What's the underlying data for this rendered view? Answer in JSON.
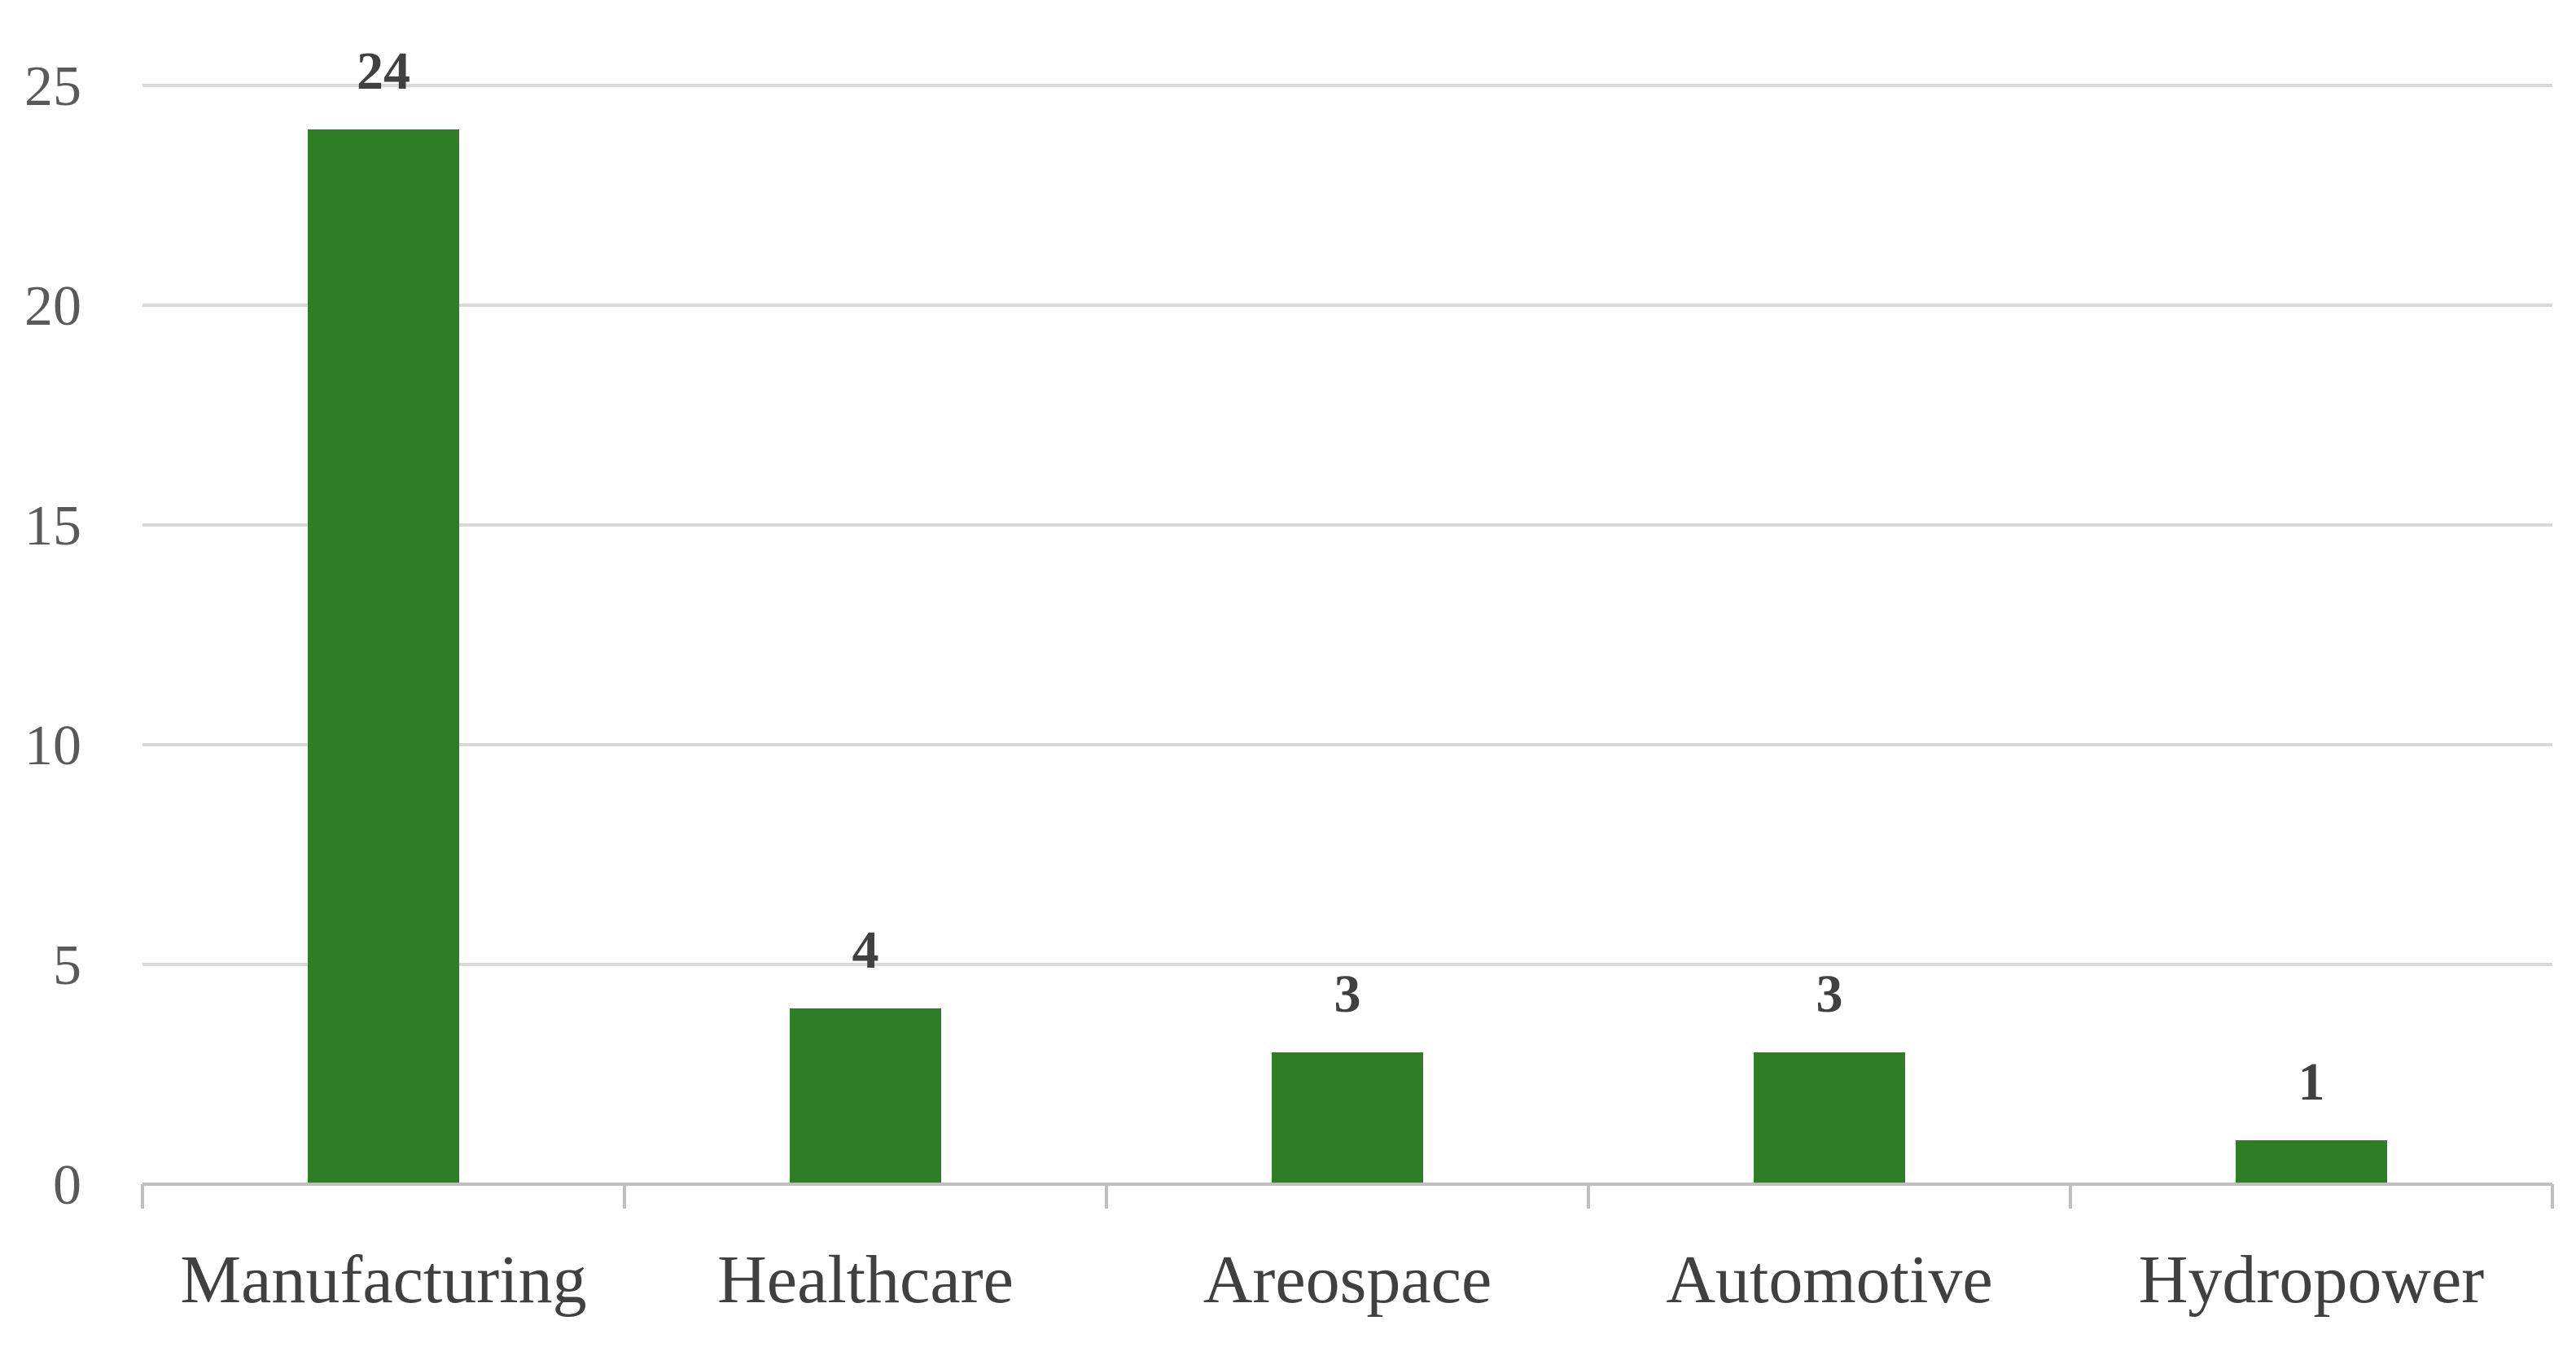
{
  "chart_data": {
    "type": "bar",
    "categories": [
      "Manufacturing",
      "Healthcare",
      "Areospace",
      "Automotive",
      "Hydropower"
    ],
    "values": [
      24,
      4,
      3,
      3,
      1
    ],
    "data_labels": [
      "24",
      "4",
      "3",
      "3",
      "1"
    ],
    "title": "",
    "xlabel": "",
    "ylabel": "",
    "ylim": [
      0,
      25
    ],
    "yticks": [
      0,
      5,
      10,
      15,
      20,
      25
    ],
    "ytick_labels": [
      "0",
      "5",
      "10",
      "15",
      "20",
      "25"
    ],
    "grid": true,
    "legend": "none",
    "bar_color": "#2e7d27",
    "grid_color": "#d9d9d9",
    "axis_color": "#bfbfbf"
  }
}
